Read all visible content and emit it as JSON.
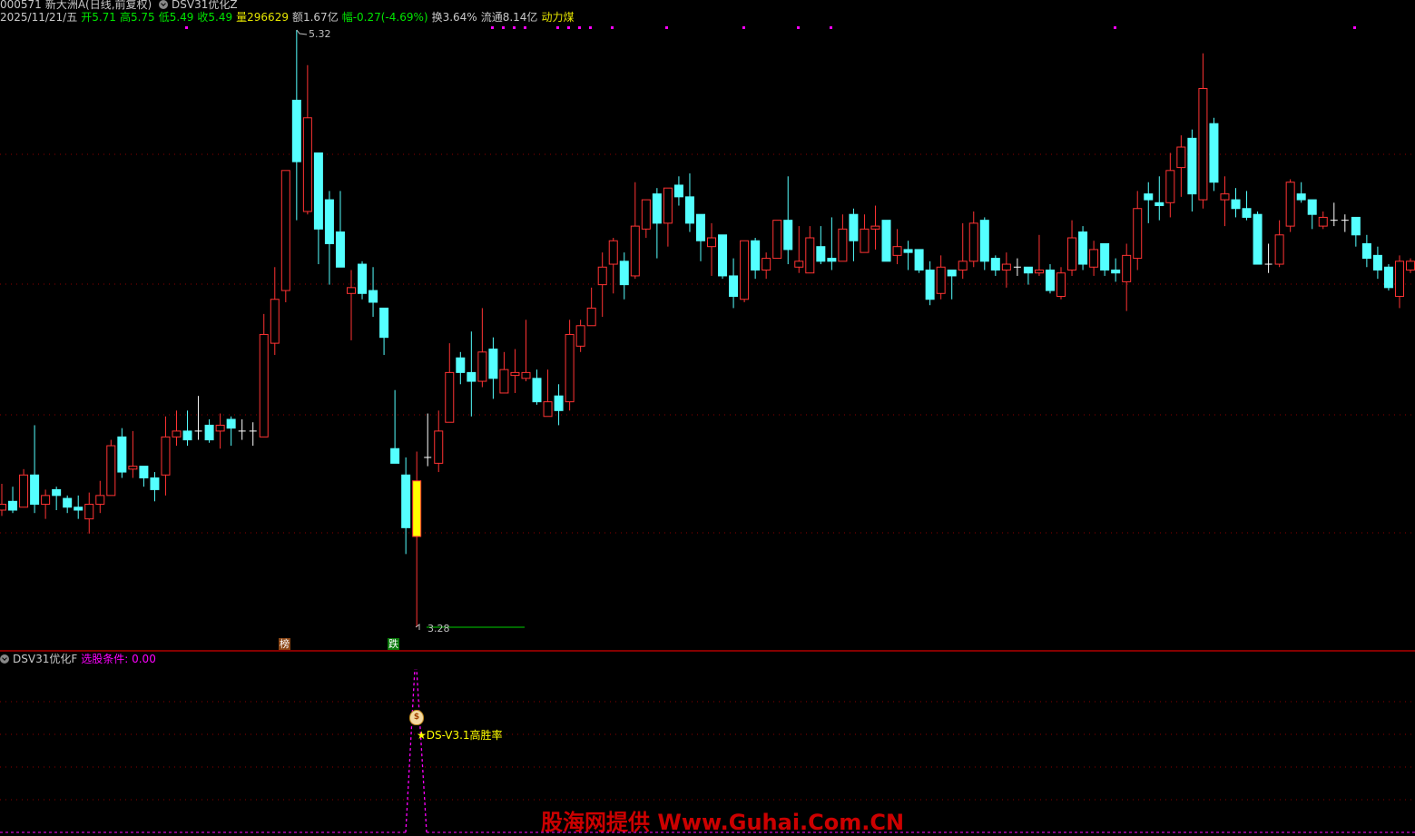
{
  "header": {
    "code": "000571",
    "name": "新大洲A(日线,前复权)",
    "indicator_main": "DSV31优化Z",
    "date": "2025/11/21/五",
    "open": "开5.71",
    "high": "高5.75",
    "low": "低5.49",
    "close": "收5.49",
    "volume": "量296629",
    "amount": "额1.67亿",
    "change": "幅-0.27(-4.69%)",
    "turnover": "换3.64%",
    "float_cap": "流通8.14亿",
    "sector": "动力煤"
  },
  "markers": {
    "high_label": "5.32",
    "low_label": "3.28",
    "tag_bang": "榜",
    "tag_die": "跌"
  },
  "sub_panel": {
    "title": "DSV31优化F",
    "condition": "选股条件: 0.00",
    "signal_label": "★DS-V3.1高胜率",
    "bag_icon": "money-bag-icon"
  },
  "watermark": "股海网提供 Www.Guhai.Com.CN",
  "colors": {
    "up": "#ff3333",
    "down": "#54ffff",
    "flat": "#ffffff",
    "highlight": "#ffff00",
    "grid": "#8b0000",
    "signal": "#ff00ff"
  },
  "chart_data": {
    "type": "candlestick",
    "ylim": [
      3.28,
      5.32
    ],
    "highlight_index": 38,
    "candle_format": [
      "open",
      "high",
      "low",
      "close"
    ],
    "candles": [
      [
        3.68,
        3.77,
        3.66,
        3.7
      ],
      [
        3.71,
        3.76,
        3.67,
        3.68
      ],
      [
        3.69,
        3.82,
        3.69,
        3.8
      ],
      [
        3.8,
        3.97,
        3.67,
        3.7
      ],
      [
        3.7,
        3.75,
        3.65,
        3.73
      ],
      [
        3.75,
        3.76,
        3.68,
        3.73
      ],
      [
        3.72,
        3.73,
        3.67,
        3.69
      ],
      [
        3.69,
        3.73,
        3.65,
        3.68
      ],
      [
        3.65,
        3.74,
        3.6,
        3.7
      ],
      [
        3.7,
        3.78,
        3.67,
        3.73
      ],
      [
        3.73,
        3.92,
        3.73,
        3.9
      ],
      [
        3.93,
        3.96,
        3.79,
        3.81
      ],
      [
        3.82,
        3.95,
        3.79,
        3.83
      ],
      [
        3.83,
        3.83,
        3.76,
        3.79
      ],
      [
        3.79,
        3.81,
        3.71,
        3.75
      ],
      [
        3.8,
        4.0,
        3.73,
        3.93
      ],
      [
        3.93,
        4.02,
        3.9,
        3.95
      ],
      [
        3.95,
        4.02,
        3.9,
        3.92
      ],
      [
        3.95,
        4.07,
        3.92,
        3.95
      ],
      [
        3.97,
        3.99,
        3.91,
        3.92
      ],
      [
        3.95,
        4.01,
        3.89,
        3.97
      ],
      [
        3.99,
        4.0,
        3.9,
        3.96
      ],
      [
        3.95,
        3.99,
        3.92,
        3.95
      ],
      [
        3.95,
        3.98,
        3.9,
        3.95
      ],
      [
        3.93,
        4.35,
        3.93,
        4.28
      ],
      [
        4.25,
        4.51,
        4.21,
        4.4
      ],
      [
        4.43,
        4.84,
        4.39,
        4.84
      ],
      [
        5.08,
        5.32,
        4.67,
        4.87
      ],
      [
        4.7,
        5.2,
        4.69,
        5.02
      ],
      [
        4.9,
        4.9,
        4.52,
        4.64
      ],
      [
        4.74,
        4.77,
        4.45,
        4.59
      ],
      [
        4.63,
        4.77,
        4.51,
        4.51
      ],
      [
        4.42,
        4.5,
        4.26,
        4.44
      ],
      [
        4.52,
        4.53,
        4.4,
        4.42
      ],
      [
        4.43,
        4.51,
        4.34,
        4.39
      ],
      [
        4.37,
        4.37,
        4.21,
        4.27
      ],
      [
        3.89,
        4.09,
        3.84,
        3.84
      ],
      [
        3.8,
        3.86,
        3.53,
        3.62
      ],
      [
        3.59,
        3.88,
        3.28,
        3.78
      ],
      [
        3.86,
        4.01,
        3.83,
        3.86
      ],
      [
        3.84,
        4.02,
        3.81,
        3.95
      ],
      [
        3.98,
        4.25,
        3.98,
        4.15
      ],
      [
        4.2,
        4.22,
        4.11,
        4.15
      ],
      [
        4.15,
        4.29,
        4.0,
        4.12
      ],
      [
        4.12,
        4.37,
        4.1,
        4.22
      ],
      [
        4.23,
        4.27,
        4.06,
        4.13
      ],
      [
        4.08,
        4.22,
        4.08,
        4.16
      ],
      [
        4.14,
        4.23,
        4.08,
        4.15
      ],
      [
        4.13,
        4.33,
        4.12,
        4.15
      ],
      [
        4.13,
        4.16,
        4.04,
        4.05
      ],
      [
        4.0,
        4.16,
        4.0,
        4.05
      ],
      [
        4.07,
        4.11,
        3.97,
        4.02
      ],
      [
        4.05,
        4.33,
        4.02,
        4.28
      ],
      [
        4.24,
        4.33,
        4.22,
        4.31
      ],
      [
        4.31,
        4.44,
        4.31,
        4.37
      ],
      [
        4.45,
        4.56,
        4.34,
        4.51
      ],
      [
        4.52,
        4.61,
        4.42,
        4.6
      ],
      [
        4.53,
        4.56,
        4.4,
        4.45
      ],
      [
        4.48,
        4.8,
        4.47,
        4.65
      ],
      [
        4.64,
        4.74,
        4.61,
        4.74
      ],
      [
        4.76,
        4.78,
        4.54,
        4.66
      ],
      [
        4.66,
        4.78,
        4.58,
        4.78
      ],
      [
        4.79,
        4.82,
        4.72,
        4.75
      ],
      [
        4.75,
        4.83,
        4.63,
        4.66
      ],
      [
        4.69,
        4.69,
        4.53,
        4.6
      ],
      [
        4.58,
        4.66,
        4.48,
        4.61
      ],
      [
        4.62,
        4.62,
        4.47,
        4.48
      ],
      [
        4.48,
        4.54,
        4.37,
        4.41
      ],
      [
        4.4,
        4.6,
        4.39,
        4.6
      ],
      [
        4.6,
        4.61,
        4.47,
        4.5
      ],
      [
        4.5,
        4.56,
        4.47,
        4.54
      ],
      [
        4.54,
        4.67,
        4.54,
        4.67
      ],
      [
        4.67,
        4.82,
        4.52,
        4.57
      ],
      [
        4.51,
        4.65,
        4.49,
        4.53
      ],
      [
        4.49,
        4.65,
        4.49,
        4.61
      ],
      [
        4.58,
        4.65,
        4.52,
        4.53
      ],
      [
        4.54,
        4.68,
        4.5,
        4.53
      ],
      [
        4.53,
        4.69,
        4.53,
        4.64
      ],
      [
        4.69,
        4.71,
        4.53,
        4.6
      ],
      [
        4.56,
        4.69,
        4.56,
        4.64
      ],
      [
        4.64,
        4.72,
        4.57,
        4.65
      ],
      [
        4.67,
        4.67,
        4.53,
        4.53
      ],
      [
        4.55,
        4.64,
        4.52,
        4.58
      ],
      [
        4.57,
        4.6,
        4.5,
        4.56
      ],
      [
        4.57,
        4.57,
        4.49,
        4.5
      ],
      [
        4.5,
        4.53,
        4.38,
        4.4
      ],
      [
        4.42,
        4.55,
        4.4,
        4.51
      ],
      [
        4.5,
        4.5,
        4.4,
        4.48
      ],
      [
        4.5,
        4.66,
        4.47,
        4.53
      ],
      [
        4.53,
        4.7,
        4.51,
        4.66
      ],
      [
        4.67,
        4.68,
        4.5,
        4.53
      ],
      [
        4.54,
        4.55,
        4.48,
        4.5
      ],
      [
        4.5,
        4.56,
        4.44,
        4.52
      ],
      [
        4.51,
        4.54,
        4.48,
        4.51
      ],
      [
        4.51,
        4.51,
        4.45,
        4.49
      ],
      [
        4.49,
        4.62,
        4.48,
        4.5
      ],
      [
        4.5,
        4.52,
        4.42,
        4.43
      ],
      [
        4.41,
        4.51,
        4.4,
        4.49
      ],
      [
        4.5,
        4.67,
        4.48,
        4.61
      ],
      [
        4.63,
        4.65,
        4.5,
        4.52
      ],
      [
        4.51,
        4.6,
        4.48,
        4.57
      ],
      [
        4.59,
        4.59,
        4.48,
        4.5
      ],
      [
        4.5,
        4.54,
        4.46,
        4.49
      ],
      [
        4.46,
        4.59,
        4.36,
        4.55
      ],
      [
        4.54,
        4.77,
        4.5,
        4.71
      ],
      [
        4.76,
        4.8,
        4.66,
        4.74
      ],
      [
        4.73,
        4.82,
        4.67,
        4.72
      ],
      [
        4.73,
        4.9,
        4.68,
        4.84
      ],
      [
        4.85,
        4.96,
        4.75,
        4.92
      ],
      [
        4.95,
        4.98,
        4.7,
        4.76
      ],
      [
        4.74,
        5.24,
        4.71,
        5.12
      ],
      [
        5.0,
        5.02,
        4.77,
        4.8
      ],
      [
        4.74,
        4.82,
        4.65,
        4.76
      ],
      [
        4.74,
        4.78,
        4.68,
        4.71
      ],
      [
        4.71,
        4.77,
        4.67,
        4.68
      ],
      [
        4.69,
        4.7,
        4.52,
        4.52
      ],
      [
        4.52,
        4.59,
        4.49,
        4.52
      ],
      [
        4.52,
        4.67,
        4.51,
        4.62
      ],
      [
        4.65,
        4.81,
        4.63,
        4.8
      ],
      [
        4.76,
        4.8,
        4.73,
        4.74
      ],
      [
        4.74,
        4.74,
        4.64,
        4.69
      ],
      [
        4.65,
        4.7,
        4.64,
        4.68
      ],
      [
        4.67,
        4.73,
        4.65,
        4.67
      ],
      [
        4.67,
        4.69,
        4.63,
        4.67
      ],
      [
        4.68,
        4.68,
        4.58,
        4.62
      ],
      [
        4.59,
        4.62,
        4.51,
        4.54
      ],
      [
        4.55,
        4.58,
        4.47,
        4.5
      ],
      [
        4.51,
        4.52,
        4.43,
        4.44
      ],
      [
        4.41,
        4.55,
        4.37,
        4.53
      ],
      [
        4.5,
        4.54,
        4.49,
        4.53
      ]
    ]
  }
}
